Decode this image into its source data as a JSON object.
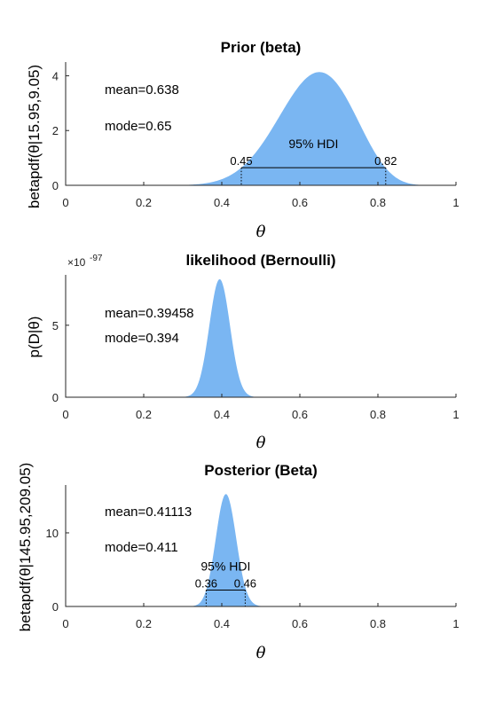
{
  "chart_data": [
    {
      "type": "area",
      "title": "Prior (beta)",
      "xlabel": "θ",
      "ylabel": "betapdf(θ|15.95,9.05)",
      "xlim": [
        0,
        1
      ],
      "ylim": [
        0,
        4.5
      ],
      "xticks": [
        "0",
        "0.2",
        "0.4",
        "0.6",
        "0.8",
        "1"
      ],
      "yticks": [
        "0",
        "2",
        "4"
      ],
      "alpha": 15.95,
      "beta": 9.05,
      "color": "#7ab6f2",
      "annotations": {
        "mean": "mean=0.638",
        "mode": "mode=0.65"
      },
      "hdi": {
        "label": "95% HDI",
        "low": 0.45,
        "high": 0.82,
        "low_label": "0.45",
        "high_label": "0.82"
      }
    },
    {
      "type": "area",
      "title": "likelihood (Bernoulli)",
      "xlabel": "θ",
      "ylabel": "p(D|θ)",
      "exponent_label": "×10",
      "exponent_value": "-97",
      "xlim": [
        0,
        1
      ],
      "ylim": [
        0,
        8.5
      ],
      "xticks": [
        "0",
        "0.2",
        "0.4",
        "0.6",
        "0.8",
        "1"
      ],
      "yticks": [
        "0",
        "5"
      ],
      "mean_value": 0.39458,
      "sd": 0.0265,
      "peak": 8.2,
      "color": "#7ab6f2",
      "annotations": {
        "mean": "mean=0.39458",
        "mode": "mode=0.394"
      }
    },
    {
      "type": "area",
      "title": "Posterior (Beta)",
      "xlabel": "θ",
      "ylabel": "betapdf(θ|145.95,209.05)",
      "xlim": [
        0,
        1
      ],
      "ylim": [
        0,
        16.5
      ],
      "xticks": [
        "0",
        "0.2",
        "0.4",
        "0.6",
        "0.8",
        "1"
      ],
      "yticks": [
        "0",
        "10"
      ],
      "alpha": 145.95,
      "beta": 209.05,
      "color": "#7ab6f2",
      "annotations": {
        "mean": "mean=0.41113",
        "mode": "mode=0.411"
      },
      "hdi": {
        "label": "95% HDI",
        "low": 0.36,
        "high": 0.46,
        "low_label": "0.36",
        "high_label": "0.46"
      }
    }
  ]
}
